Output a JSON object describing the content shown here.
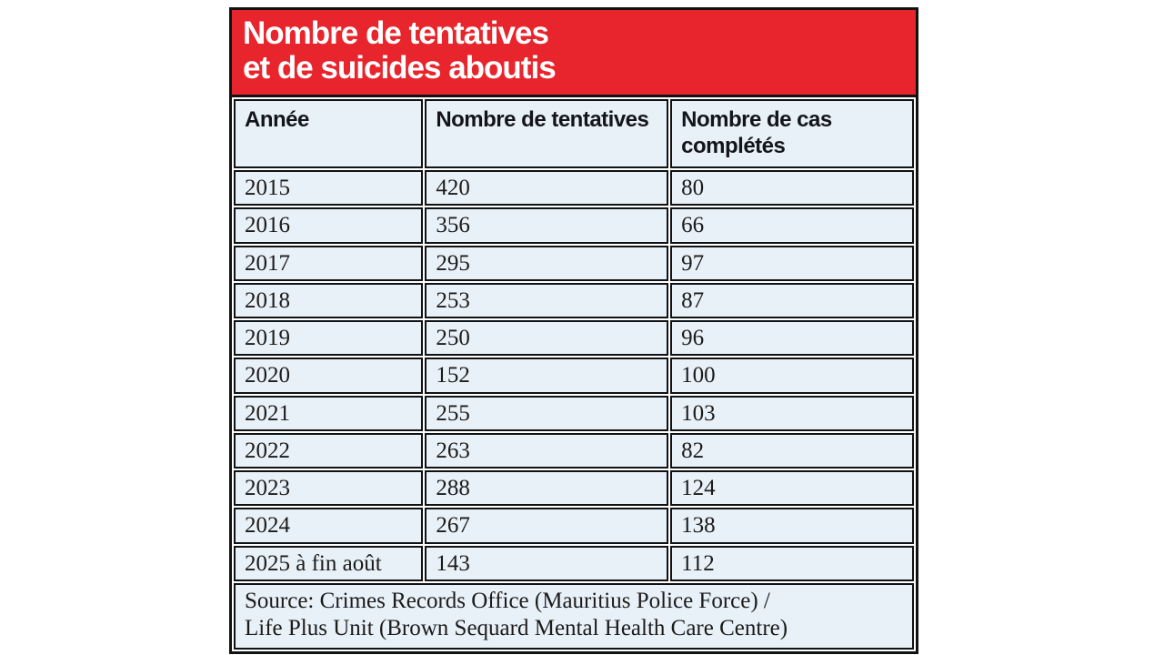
{
  "title": {
    "line1": "Nombre de tentatives",
    "line2": "et de suicides aboutis"
  },
  "table": {
    "columns": [
      "Année",
      "Nombre de tentatives",
      "Nombre de cas complétés"
    ],
    "rows": [
      [
        "2015",
        "420",
        "80"
      ],
      [
        "2016",
        "356",
        "66"
      ],
      [
        "2017",
        "295",
        "97"
      ],
      [
        "2018",
        "253",
        "87"
      ],
      [
        "2019",
        "250",
        "96"
      ],
      [
        "2020",
        "152",
        "100"
      ],
      [
        "2021",
        "255",
        "103"
      ],
      [
        "2022",
        "263",
        "82"
      ],
      [
        "2023",
        "288",
        "124"
      ],
      [
        "2024",
        "267",
        "138"
      ],
      [
        "2025 à fin août",
        "143",
        "112"
      ]
    ],
    "source_line1": "Source: Crimes Records Office (Mauritius Police Force) /",
    "source_line2": "Life Plus Unit (Brown Sequard Mental Health Care Centre)"
  },
  "colors": {
    "accent_red": "#e8252d",
    "cell_blue": "#e8f1f7",
    "border_black": "#111213"
  },
  "chart_data": {
    "type": "table",
    "title": "Nombre de tentatives et de suicides aboutis",
    "categories": [
      "2015",
      "2016",
      "2017",
      "2018",
      "2019",
      "2020",
      "2021",
      "2022",
      "2023",
      "2024",
      "2025 à fin août"
    ],
    "series": [
      {
        "name": "Nombre de tentatives",
        "values": [
          420,
          356,
          295,
          253,
          250,
          152,
          255,
          263,
          288,
          267,
          143
        ]
      },
      {
        "name": "Nombre de cas complétés",
        "values": [
          80,
          66,
          97,
          87,
          96,
          100,
          103,
          82,
          124,
          138,
          112
        ]
      }
    ],
    "source": "Source: Crimes Records Office (Mauritius Police Force) / Life Plus Unit (Brown Sequard Mental Health Care Centre)"
  }
}
